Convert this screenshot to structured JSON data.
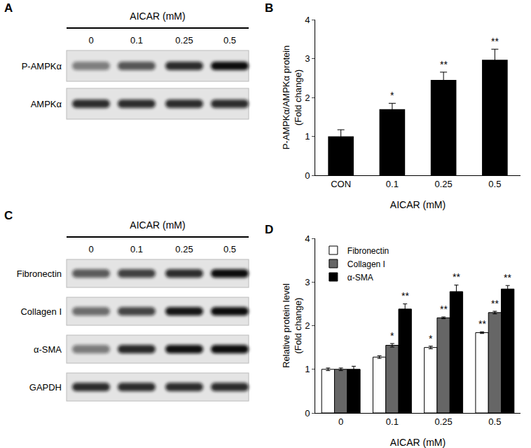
{
  "panel_letters": [
    "A",
    "B",
    "C",
    "D"
  ],
  "blots": [
    {
      "header": "AICAR (mM)",
      "lanes": [
        "0",
        "0.1",
        "0.25",
        "0.5"
      ],
      "rows": [
        "P-AMPKα",
        "AMPKα"
      ]
    },
    {
      "header": "AICAR (mM)",
      "lanes": [
        "0",
        "0.1",
        "0.25",
        "0.5"
      ],
      "rows": [
        "Fibronectin",
        "Collagen I",
        "α-SMA",
        "GAPDH"
      ]
    }
  ],
  "chart_data": [
    {
      "type": "bar",
      "categories": [
        "CON",
        "0.1",
        "0.25",
        "0.5"
      ],
      "values": [
        1.0,
        1.7,
        2.45,
        2.97
      ],
      "errors": [
        0.17,
        0.15,
        0.2,
        0.27
      ],
      "significance": [
        null,
        "*",
        "**",
        "**"
      ],
      "color": "#000000",
      "x_label": "AICAR (mM)",
      "y_label": "P-AMPKα/AMPKα protein\n(Fold change)",
      "ylim": [
        0,
        4
      ],
      "yticks": [
        0,
        1,
        2,
        3,
        4
      ],
      "grid": false
    },
    {
      "type": "bar",
      "categories": [
        "0",
        "0.1",
        "0.25",
        "0.5"
      ],
      "series": [
        {
          "name": "Fibronectin",
          "color": "#ffffff",
          "values": [
            1.0,
            1.28,
            1.5,
            1.84
          ],
          "errors": [
            0.03,
            0.03,
            0.03,
            0.02
          ],
          "significance": [
            null,
            null,
            "*",
            "**"
          ]
        },
        {
          "name": "Collagen I",
          "color": "#666666",
          "values": [
            1.0,
            1.55,
            2.18,
            2.3
          ],
          "errors": [
            0.03,
            0.04,
            0.02,
            0.03
          ],
          "significance": [
            null,
            "*",
            "**",
            "**"
          ]
        },
        {
          "name": "α-SMA",
          "color": "#000000",
          "values": [
            1.0,
            2.38,
            2.78,
            2.84
          ],
          "errors": [
            0.07,
            0.12,
            0.15,
            0.08
          ],
          "significance": [
            null,
            "**",
            "**",
            "**"
          ]
        }
      ],
      "x_label": "AICAR (mM)",
      "y_label": "Relative protein level\n(Fold change)",
      "ylim": [
        0,
        4
      ],
      "yticks": [
        0,
        1,
        2,
        3,
        4
      ],
      "grid": false,
      "legend": "top left"
    }
  ]
}
